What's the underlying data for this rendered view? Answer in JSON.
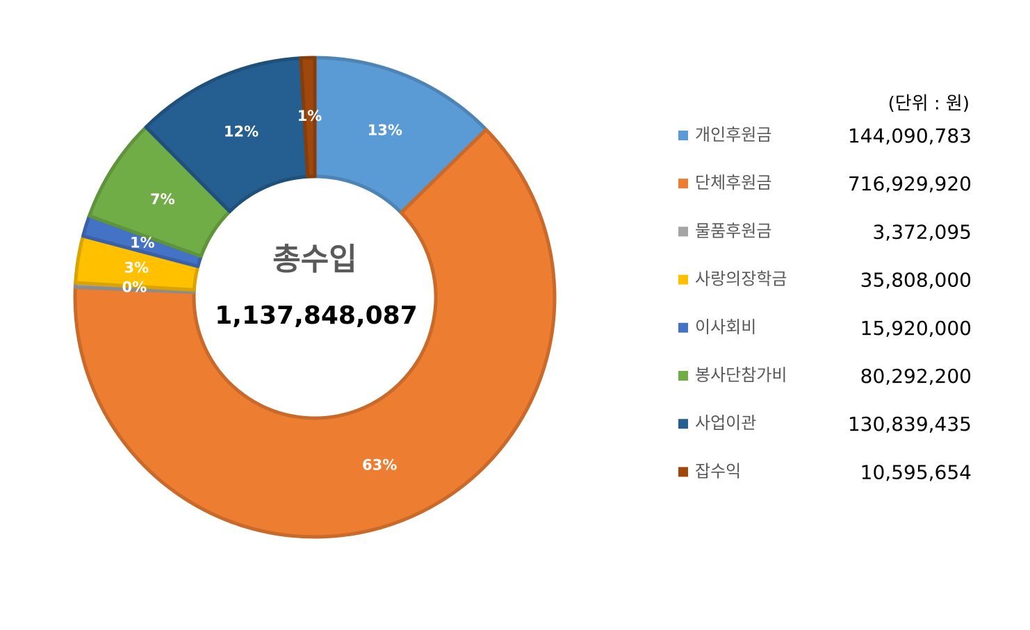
{
  "chart_data": {
    "type": "donut",
    "center_label": "총수입",
    "center_value": "1,137,848,087",
    "unit_label": "(단위 : 원)",
    "categories": [
      "개인후원금",
      "단체후원금",
      "물품후원금",
      "사랑의장학금",
      "이사회비",
      "봉사단참가비",
      "사업이관",
      "잡수익"
    ],
    "values": [
      144090783,
      716929920,
      3372095,
      35808000,
      15920000,
      80292200,
      130839435,
      10595654
    ],
    "value_labels": [
      "144,090,783",
      "716,929,920",
      "3,372,095",
      "35,808,000",
      "15,920,000",
      "80,292,200",
      "130,839,435",
      "10,595,654"
    ],
    "percent_labels": [
      "13%",
      "63%",
      "0%",
      "3%",
      "1%",
      "7%",
      "12%",
      "1%"
    ],
    "colors": [
      "#5b9bd5",
      "#ed7d31",
      "#a5a5a5",
      "#ffc000",
      "#4472c4",
      "#70ad47",
      "#255e91",
      "#9e480e"
    ],
    "legend": "right"
  }
}
